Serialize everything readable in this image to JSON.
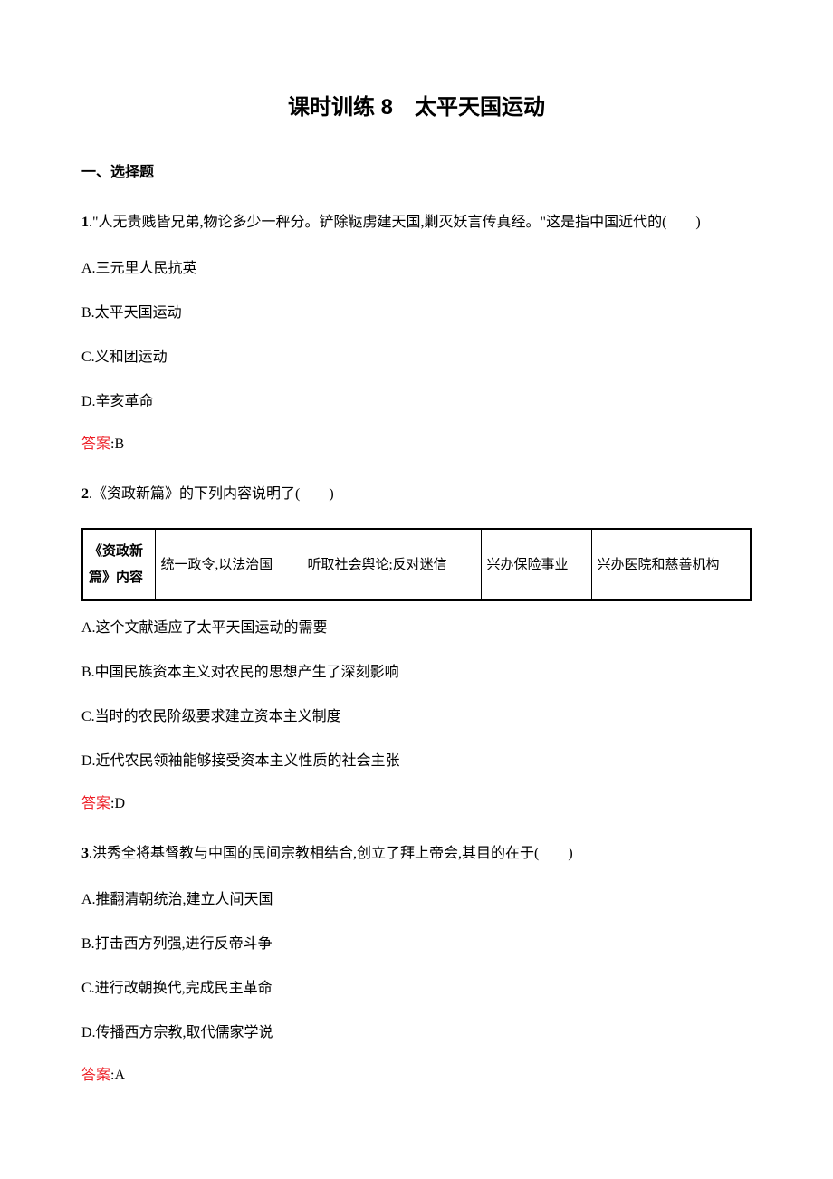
{
  "title": "课时训练 8　太平天国运动",
  "section_header": "一、选择题",
  "answer_label": "答案",
  "q1": {
    "num": "1",
    "text": ".\"人无贵贱皆兄弟,物论多少一秤分。铲除鞑虏建天国,剿灭妖言传真经。\"这是指中国近代的(　　)",
    "opts": {
      "a": "A.三元里人民抗英",
      "b": "B.太平天国运动",
      "c": "C.义和团运动",
      "d": "D.辛亥革命"
    },
    "answer_val": ":B"
  },
  "q2": {
    "num": "2",
    "text": ".《资政新篇》的下列内容说明了(　　)",
    "table": {
      "header": "《资政新篇》内容",
      "cells": {
        "c1": "统一政令,以法治国",
        "c2": "听取社会舆论;反对迷信",
        "c3": "兴办保险事业",
        "c4": "兴办医院和慈善机构"
      }
    },
    "opts": {
      "a": "A.这个文献适应了太平天国运动的需要",
      "b": "B.中国民族资本主义对农民的思想产生了深刻影响",
      "c": "C.当时的农民阶级要求建立资本主义制度",
      "d": "D.近代农民领袖能够接受资本主义性质的社会主张"
    },
    "answer_val": ":D"
  },
  "q3": {
    "num": "3",
    "text": ".洪秀全将基督教与中国的民间宗教相结合,创立了拜上帝会,其目的在于(　　)",
    "opts": {
      "a": "A.推翻清朝统治,建立人间天国",
      "b": "B.打击西方列强,进行反帝斗争",
      "c": "C.进行改朝换代,完成民主革命",
      "d": "D.传播西方宗教,取代儒家学说"
    },
    "answer_val": ":A"
  }
}
